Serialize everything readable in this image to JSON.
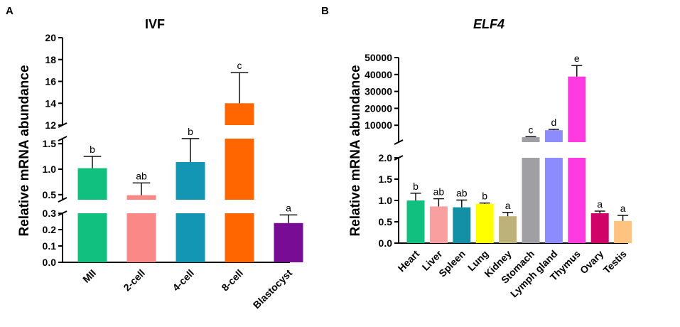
{
  "chart_data": [
    {
      "type": "bar",
      "panel": "A",
      "title": "IVF",
      "ylabel": "Relative  mRNA abundance",
      "xlabel": "",
      "y_axis_breaks": [
        {
          "range": [
            0.0,
            0.3
          ],
          "ticks": [
            "0.0",
            "0.1",
            "0.2",
            "0.3"
          ]
        },
        {
          "range": [
            0.4,
            1.6
          ],
          "ticks": [
            "0.5",
            "1.0",
            "1.5"
          ]
        },
        {
          "range": [
            12,
            20
          ],
          "ticks": [
            "12",
            "14",
            "16",
            "18",
            "20"
          ]
        }
      ],
      "categories": [
        "MII",
        "2-cell",
        "4-cell",
        "8-cell",
        "Blastocyst"
      ],
      "values": [
        1.02,
        0.49,
        1.14,
        14.0,
        0.24
      ],
      "errors": [
        0.23,
        0.24,
        0.46,
        2.8,
        0.05
      ],
      "colors": [
        "#11bf7e",
        "#f98887",
        "#1296b3",
        "#ff6600",
        "#790c94"
      ],
      "significance": [
        "b",
        "ab",
        "b",
        "c",
        "a"
      ]
    },
    {
      "type": "bar",
      "panel": "B",
      "title": "ELF4",
      "ylabel": "Relative  mRNA abundance",
      "xlabel": "",
      "y_axis_breaks": [
        {
          "range": [
            0.0,
            2.0
          ],
          "ticks": [
            "0.0",
            "0.5",
            "1.0",
            "1.5",
            "2.0"
          ]
        },
        {
          "range": [
            0,
            50000
          ],
          "ticks": [
            "10000",
            "20000",
            "30000",
            "40000",
            "50000"
          ]
        }
      ],
      "categories": [
        "Heart",
        "Liver",
        "Spleen",
        "Lung",
        "Kidney",
        "Stomach",
        "Lymph gland",
        "Thymus",
        "Ovary",
        "Testis"
      ],
      "values": [
        1.0,
        0.86,
        0.84,
        0.92,
        0.63,
        3000,
        7100,
        38800,
        0.7,
        0.52
      ],
      "errors": [
        0.17,
        0.18,
        0.17,
        0.02,
        0.09,
        250,
        450,
        6500,
        0.05,
        0.13
      ],
      "colors": [
        "#11bf7e",
        "#f99f9f",
        "#138fa6",
        "#ffff00",
        "#bdb27a",
        "#a09fa4",
        "#8c8cff",
        "#ff3ae1",
        "#d00268",
        "#ffc381"
      ],
      "significance": [
        "b",
        "ab",
        "ab",
        "b",
        "a",
        "c",
        "d",
        "e",
        "a",
        "a"
      ]
    }
  ]
}
